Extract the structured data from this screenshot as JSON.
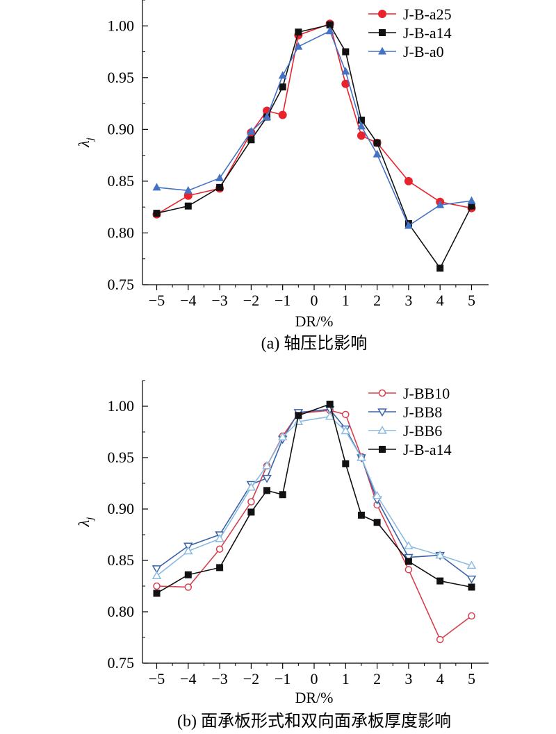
{
  "chart_data": [
    {
      "type": "line",
      "caption": "(a) 轴压比影响",
      "xlabel": "DR/%",
      "ylabel": "λj",
      "ylabel_main": "λ",
      "ylabel_sub": "j",
      "x_tick_labels": [
        "−5",
        "−4",
        "−3",
        "−2",
        "−1",
        "0",
        "1",
        "2",
        "3",
        "4",
        "5"
      ],
      "y_tick_labels": [
        "0.75",
        "0.80",
        "0.85",
        "0.90",
        "0.95",
        "1.00"
      ],
      "ylim": [
        0.75,
        1.025
      ],
      "legend": "top-right",
      "series": [
        {
          "name": "J-B-a25",
          "color": "#e8232e",
          "marker": "filled-circle",
          "points": [
            [
              -5,
              0.818
            ],
            [
              -4,
              0.836
            ],
            [
              -3,
              0.843
            ],
            [
              -2,
              0.897
            ],
            [
              -1.5,
              0.918
            ],
            [
              -1,
              0.914
            ],
            [
              -0.5,
              0.991
            ],
            [
              0.5,
              1.002
            ],
            [
              1,
              0.944
            ],
            [
              1.5,
              0.894
            ],
            [
              2,
              0.887
            ],
            [
              3,
              0.85
            ],
            [
              4,
              0.83
            ],
            [
              5,
              0.824
            ]
          ]
        },
        {
          "name": "J-B-a14",
          "color": "#111111",
          "marker": "filled-square",
          "points": [
            [
              -5,
              0.819
            ],
            [
              -4,
              0.826
            ],
            [
              -3,
              0.844
            ],
            [
              -2,
              0.89
            ],
            [
              -1.5,
              0.912
            ],
            [
              -1,
              0.941
            ],
            [
              -0.5,
              0.994
            ],
            [
              0.5,
              1.001
            ],
            [
              1,
              0.975
            ],
            [
              1.5,
              0.909
            ],
            [
              2,
              0.887
            ],
            [
              3,
              0.809
            ],
            [
              4,
              0.766
            ],
            [
              5,
              0.826
            ]
          ]
        },
        {
          "name": "J-B-a0",
          "color": "#4472c4",
          "marker": "filled-triangle",
          "points": [
            [
              -5,
              0.844
            ],
            [
              -4,
              0.841
            ],
            [
              -3,
              0.853
            ],
            [
              -2,
              0.898
            ],
            [
              -1.5,
              0.912
            ],
            [
              -1,
              0.952
            ],
            [
              -0.5,
              0.98
            ],
            [
              0.5,
              0.995
            ],
            [
              1,
              0.956
            ],
            [
              1.5,
              0.903
            ],
            [
              2,
              0.876
            ],
            [
              3,
              0.807
            ],
            [
              4,
              0.827
            ],
            [
              5,
              0.831
            ]
          ]
        }
      ]
    },
    {
      "type": "line",
      "caption": "(b) 面承板形式和双向面承板厚度影响",
      "xlabel": "DR/%",
      "ylabel": "λj",
      "ylabel_main": "λ",
      "ylabel_sub": "j",
      "x_tick_labels": [
        "−5",
        "−4",
        "−3",
        "−2",
        "−1",
        "0",
        "1",
        "2",
        "3",
        "4",
        "5"
      ],
      "y_tick_labels": [
        "0.75",
        "0.80",
        "0.85",
        "0.90",
        "0.95",
        "1.00"
      ],
      "ylim": [
        0.75,
        1.025
      ],
      "legend": "top-right",
      "series": [
        {
          "name": "J-BB10",
          "color": "#d6404e",
          "marker": "open-circle",
          "points": [
            [
              -5,
              0.825
            ],
            [
              -4,
              0.824
            ],
            [
              -3,
              0.861
            ],
            [
              -2,
              0.907
            ],
            [
              -1.5,
              0.942
            ],
            [
              -1,
              0.971
            ],
            [
              -0.5,
              0.993
            ],
            [
              0.5,
              0.996
            ],
            [
              1,
              0.992
            ],
            [
              1.5,
              0.951
            ],
            [
              2,
              0.904
            ],
            [
              3,
              0.841
            ],
            [
              4,
              0.773
            ],
            [
              5,
              0.796
            ]
          ]
        },
        {
          "name": "J-BB8",
          "color": "#3a63a8",
          "marker": "open-triangle-down",
          "points": [
            [
              -5,
              0.842
            ],
            [
              -4,
              0.864
            ],
            [
              -3,
              0.875
            ],
            [
              -2,
              0.924
            ],
            [
              -1.5,
              0.93
            ],
            [
              -1,
              0.968
            ],
            [
              -0.5,
              0.994
            ],
            [
              0.5,
              0.997
            ],
            [
              1,
              0.978
            ],
            [
              1.5,
              0.95
            ],
            [
              2,
              0.909
            ],
            [
              3,
              0.853
            ],
            [
              4,
              0.855
            ],
            [
              5,
              0.832
            ]
          ]
        },
        {
          "name": "J-BB6",
          "color": "#8cbbe0",
          "marker": "open-triangle",
          "points": [
            [
              -5,
              0.835
            ],
            [
              -4,
              0.859
            ],
            [
              -3,
              0.871
            ],
            [
              -2,
              0.921
            ],
            [
              -1.5,
              0.942
            ],
            [
              -1,
              0.97
            ],
            [
              -0.5,
              0.985
            ],
            [
              0.5,
              0.99
            ],
            [
              1,
              0.976
            ],
            [
              1.5,
              0.95
            ],
            [
              2,
              0.913
            ],
            [
              3,
              0.864
            ],
            [
              4,
              0.855
            ],
            [
              5,
              0.845
            ]
          ]
        },
        {
          "name": "J-B-a14",
          "color": "#111111",
          "marker": "filled-square",
          "points": [
            [
              -5,
              0.818
            ],
            [
              -4,
              0.836
            ],
            [
              -3,
              0.843
            ],
            [
              -2,
              0.897
            ],
            [
              -1.5,
              0.918
            ],
            [
              -1,
              0.914
            ],
            [
              -0.5,
              0.991
            ],
            [
              0.5,
              1.002
            ],
            [
              1,
              0.944
            ],
            [
              1.5,
              0.894
            ],
            [
              2,
              0.887
            ],
            [
              3,
              0.849
            ],
            [
              4,
              0.83
            ],
            [
              5,
              0.824
            ]
          ]
        }
      ]
    }
  ]
}
